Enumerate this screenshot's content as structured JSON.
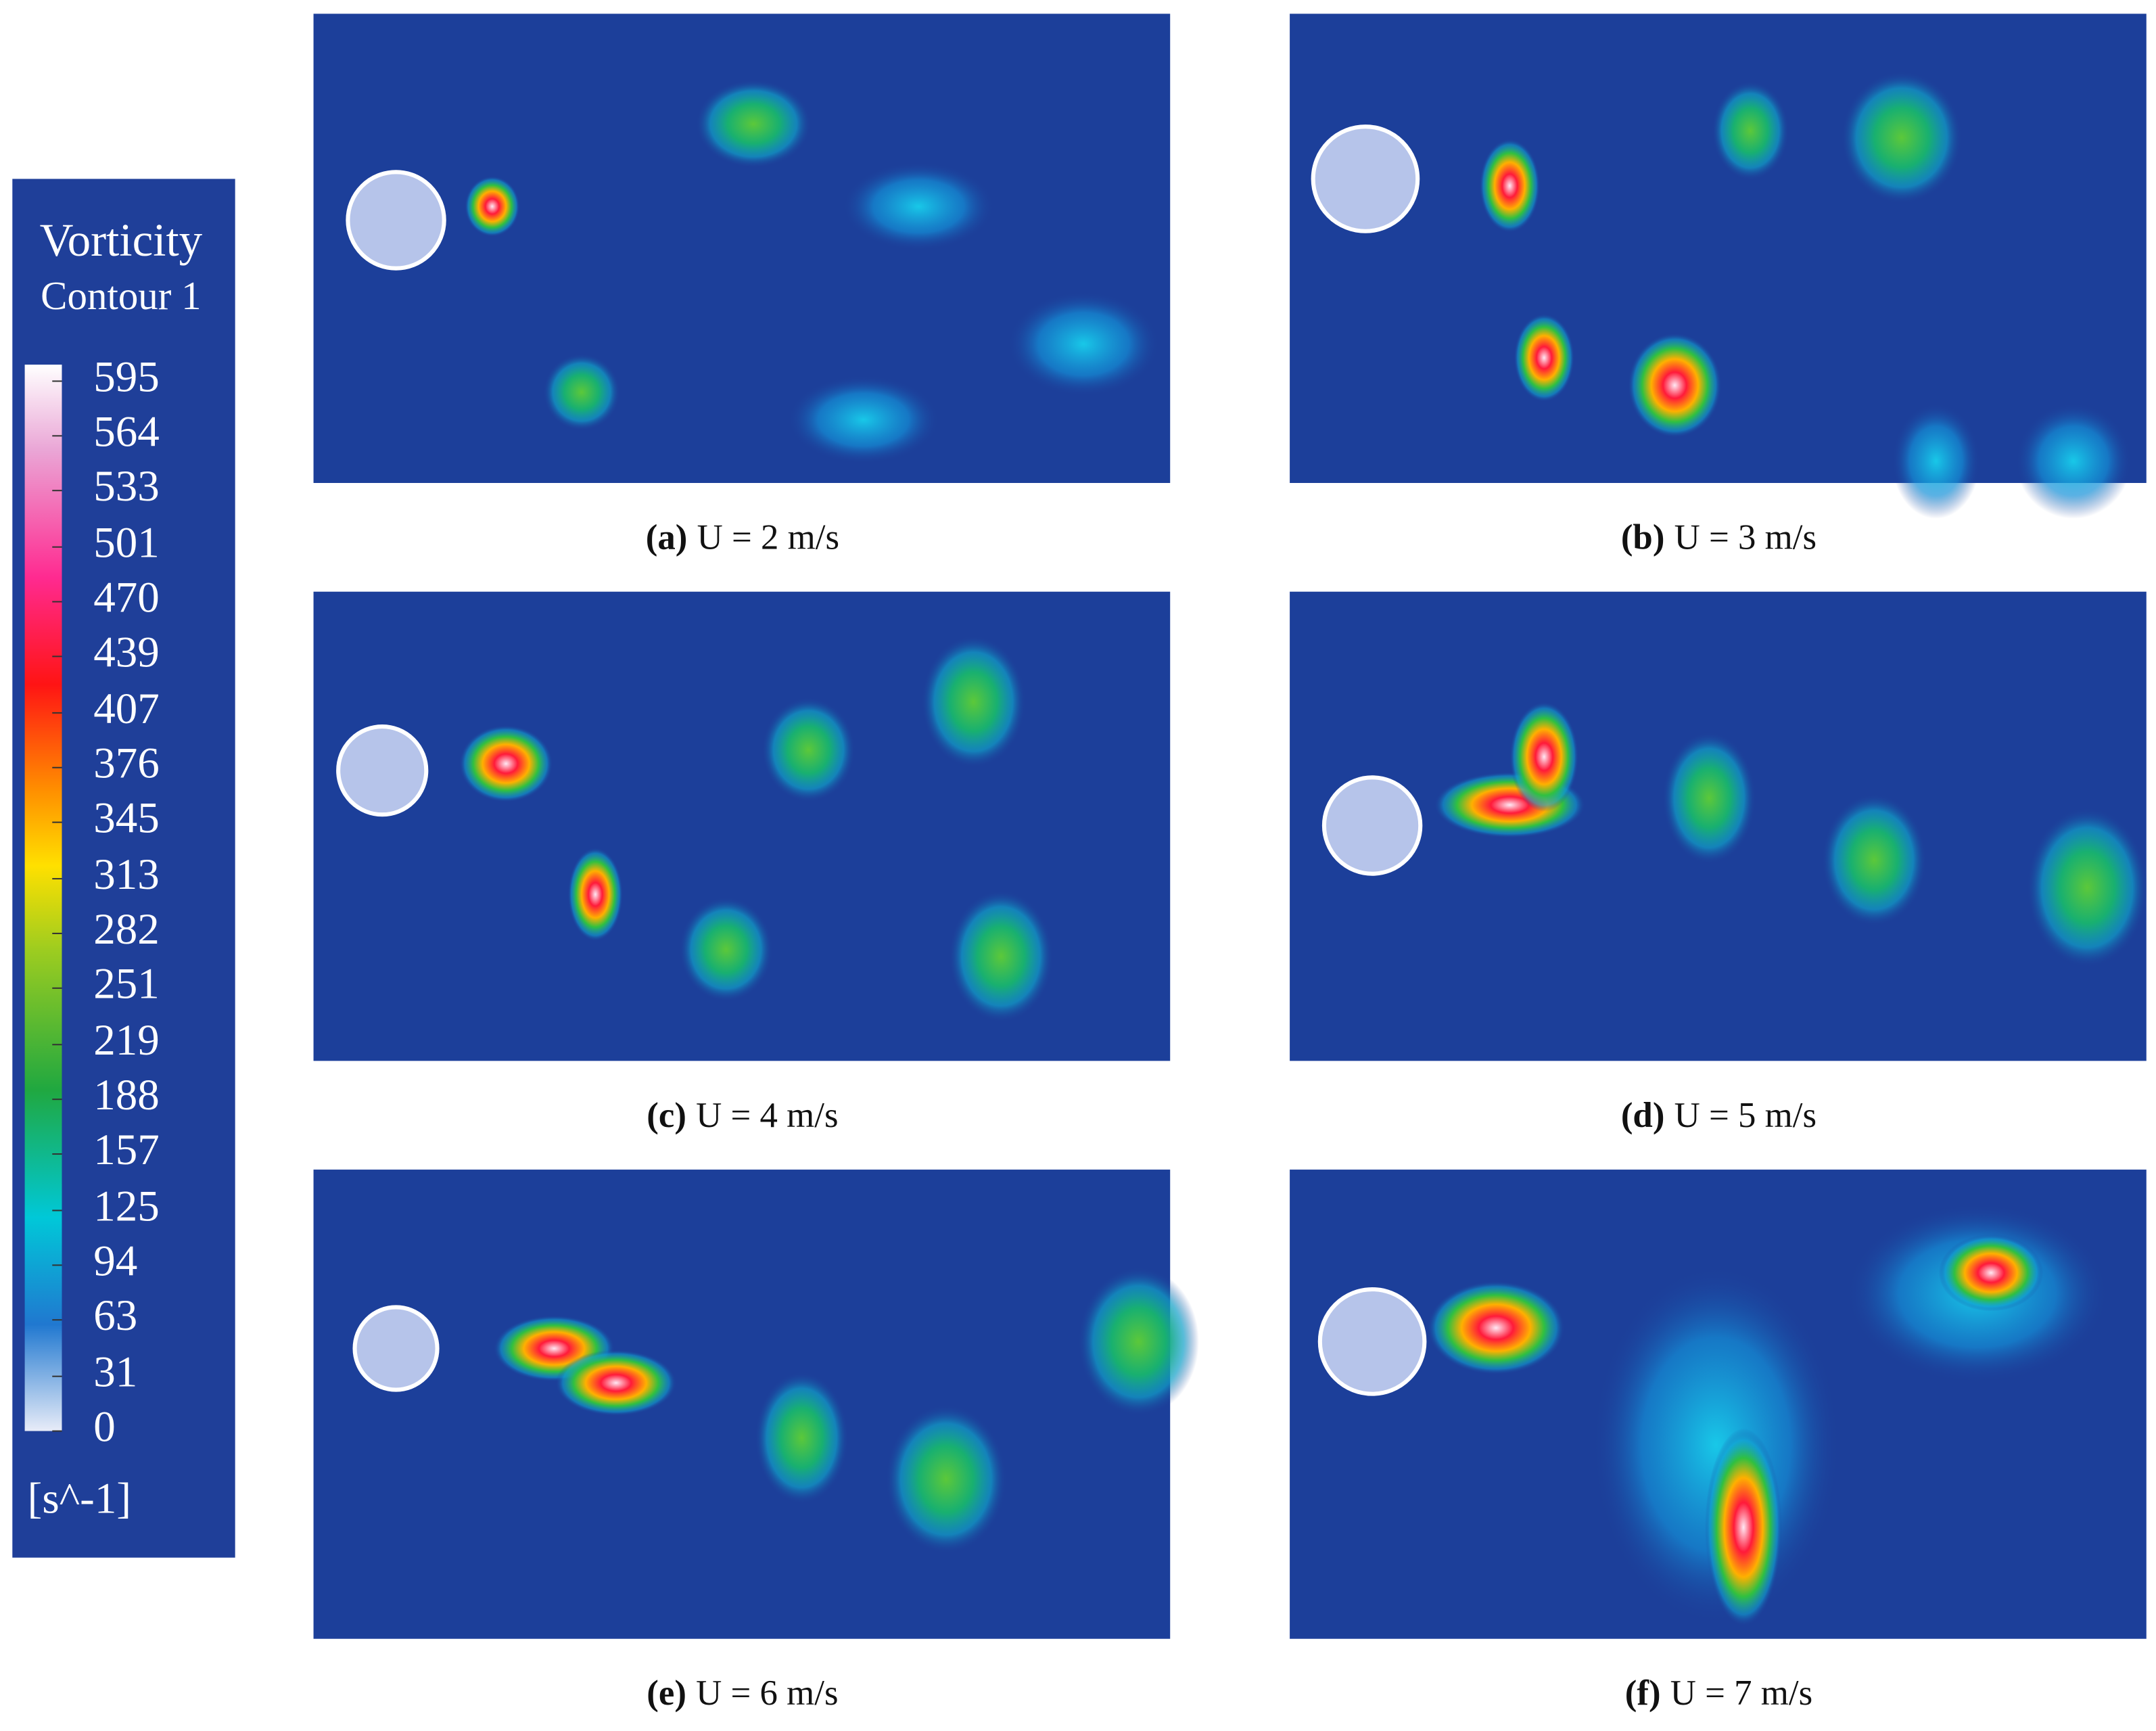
{
  "legend": {
    "title": "Vorticity",
    "subtitle": "Contour 1",
    "range": [
      0,
      595
    ],
    "ticks": [
      595,
      564,
      533,
      501,
      470,
      439,
      407,
      376,
      345,
      313,
      282,
      251,
      219,
      188,
      157,
      125,
      94,
      63,
      31,
      0
    ],
    "unit": "[s^-1]"
  },
  "panels": [
    {
      "label": "(a)",
      "caption": "U = 2 m/s"
    },
    {
      "label": "(b)",
      "caption": "U = 3 m/s"
    },
    {
      "label": "(c)",
      "caption": "U = 4 m/s"
    },
    {
      "label": "(d)",
      "caption": "U = 5 m/s"
    },
    {
      "label": "(e)",
      "caption": "U = 6 m/s"
    },
    {
      "label": "(f)",
      "caption": "U = 7 m/s"
    }
  ]
}
